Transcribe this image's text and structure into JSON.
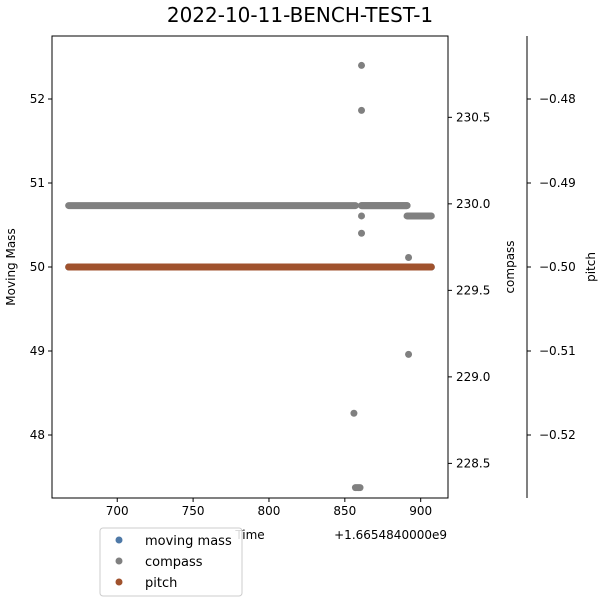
{
  "chart_data": {
    "type": "scatter",
    "title": "2022-10-11-BENCH-TEST-1",
    "xlabel": "Time",
    "x_offset_label": "+1.6654840000e9",
    "xlim": [
      657,
      918
    ],
    "x_ticks": [
      700,
      750,
      800,
      850,
      900
    ],
    "axes": {
      "left": {
        "label": "Moving Mass",
        "ylim": [
          47.25,
          52.75
        ],
        "ticks": [
          48,
          49,
          50,
          51,
          52
        ]
      },
      "right": {
        "label": "compass",
        "ylim": [
          228.3,
          230.97
        ],
        "ticks": [
          228.5,
          229.0,
          229.5,
          230.0,
          230.5
        ],
        "tick_labels": [
          "228.5",
          "229.0",
          "229.5",
          "230.0",
          "230.5"
        ]
      },
      "pitch": {
        "label": "pitch",
        "ylim": [
          -0.5275,
          -0.4725
        ],
        "ticks": [
          -0.52,
          -0.51,
          -0.5,
          -0.49,
          -0.48
        ],
        "tick_labels": [
          "−0.52",
          "−0.51",
          "−0.50",
          "−0.49",
          "−0.48"
        ]
      }
    },
    "series": [
      {
        "name": "moving mass",
        "color": "#4e79a7",
        "axis": "left",
        "runs": [
          {
            "x0": 668,
            "x1": 907,
            "y": 50.0
          }
        ],
        "points": []
      },
      {
        "name": "compass",
        "color": "#808080",
        "axis": "right",
        "runs": [
          {
            "x0": 668,
            "x1": 857,
            "y": 229.99
          },
          {
            "x0": 861,
            "x1": 891,
            "y": 229.99
          },
          {
            "x0": 891,
            "x1": 907,
            "y": 229.93
          },
          {
            "x0": 861,
            "x1": 891,
            "y": 229.99
          }
        ],
        "points": [
          [
            861,
            230.8
          ],
          [
            861,
            230.54
          ],
          [
            861,
            229.83
          ],
          [
            861,
            229.93
          ],
          [
            892,
            229.69
          ],
          [
            892,
            229.13
          ],
          [
            856,
            228.79
          ],
          [
            857,
            228.36
          ],
          [
            858,
            228.36
          ],
          [
            859,
            228.36
          ],
          [
            860,
            228.36
          ]
        ]
      },
      {
        "name": "pitch",
        "color": "#a0522d",
        "axis": "pitch",
        "runs": [
          {
            "x0": 668,
            "x1": 907,
            "y": -0.5
          }
        ],
        "points": []
      }
    ],
    "legend": {
      "position": "below-left",
      "entries": [
        {
          "label": "moving mass",
          "color": "#4e79a7"
        },
        {
          "label": "compass",
          "color": "#808080"
        },
        {
          "label": "pitch",
          "color": "#a0522d"
        }
      ]
    },
    "grid": false
  }
}
